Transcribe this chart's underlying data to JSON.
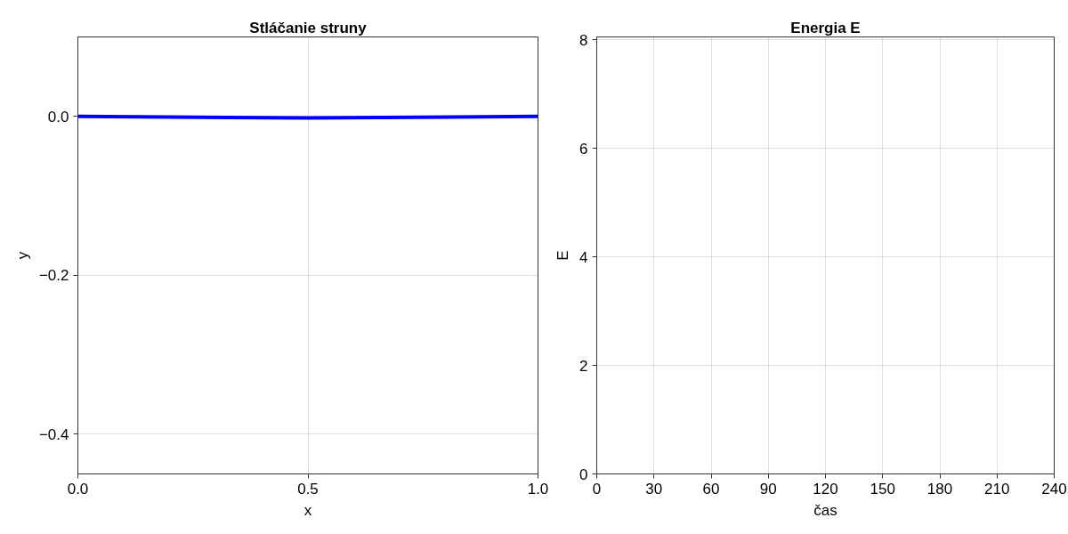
{
  "chart_data": [
    {
      "type": "line",
      "title": "Stláčanie struny",
      "xlabel": "x",
      "ylabel": "y",
      "series": [
        {
          "color": "#0000ff",
          "x": [
            0,
            0.5,
            1
          ],
          "values": [
            0,
            -0.002,
            0
          ]
        }
      ],
      "xlim": [
        0,
        1
      ],
      "ylim": [
        -0.45,
        0.1
      ],
      "xticks": [
        {
          "value": 0,
          "label": "0.0"
        },
        0.5,
        {
          "value": 1,
          "label": "1.0"
        }
      ],
      "yticks": [
        {
          "value": -0.4,
          "label": "−0.4"
        },
        {
          "value": -0.2,
          "label": "−0.2"
        },
        {
          "value": 0,
          "label": "0.0"
        }
      ],
      "grid": true,
      "marker": "none",
      "line_style": "solid"
    },
    {
      "type": "line",
      "title": "Energia E",
      "xlabel": "čas",
      "ylabel": "E",
      "xlim": [
        0,
        240
      ],
      "ylim": [
        0,
        8.05
      ],
      "xticks": [
        0,
        30,
        60,
        90,
        120,
        150,
        180,
        210,
        240
      ],
      "yticks": [
        0,
        2,
        4,
        6,
        8
      ],
      "grid": true
    }
  ]
}
